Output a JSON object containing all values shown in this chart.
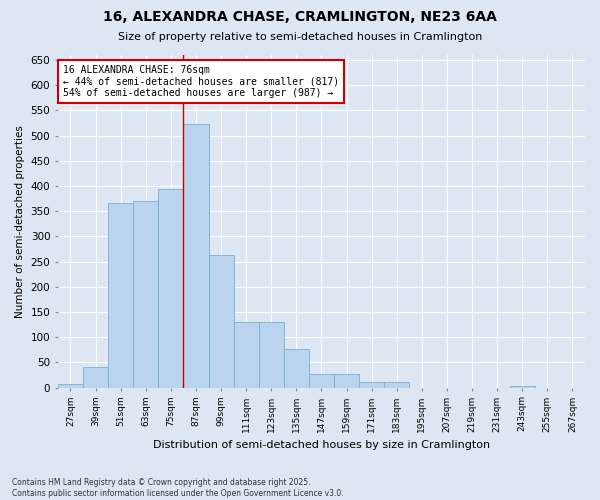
{
  "title": "16, ALEXANDRA CHASE, CRAMLINGTON, NE23 6AA",
  "subtitle": "Size of property relative to semi-detached houses in Cramlington",
  "xlabel": "Distribution of semi-detached houses by size in Cramlington",
  "ylabel": "Number of semi-detached properties",
  "bar_color": "#bad4ed",
  "bar_edge_color": "#7aafd4",
  "background_color": "#dce7f3",
  "grid_color": "#ffffff",
  "annotation_text": "16 ALEXANDRA CHASE: 76sqm\n← 44% of semi-detached houses are smaller (817)\n54% of semi-detached houses are larger (987) →",
  "annotation_box_color": "#ffffff",
  "annotation_box_edge_color": "#cc0000",
  "vline_color": "#cc0000",
  "vline_x": 4.5,
  "categories": [
    "27sqm",
    "39sqm",
    "51sqm",
    "63sqm",
    "75sqm",
    "87sqm",
    "99sqm",
    "111sqm",
    "123sqm",
    "135sqm",
    "147sqm",
    "159sqm",
    "171sqm",
    "183sqm",
    "195sqm",
    "207sqm",
    "219sqm",
    "231sqm",
    "243sqm",
    "255sqm",
    "267sqm"
  ],
  "values": [
    8,
    40,
    367,
    370,
    395,
    523,
    263,
    130,
    130,
    77,
    28,
    28,
    12,
    11,
    0,
    0,
    0,
    0,
    4,
    0,
    0
  ],
  "ylim": [
    0,
    660
  ],
  "yticks": [
    0,
    50,
    100,
    150,
    200,
    250,
    300,
    350,
    400,
    450,
    500,
    550,
    600,
    650
  ],
  "footnote": "Contains HM Land Registry data © Crown copyright and database right 2025.\nContains public sector information licensed under the Open Government Licence v3.0.",
  "figwidth": 6.0,
  "figheight": 5.0,
  "dpi": 100
}
